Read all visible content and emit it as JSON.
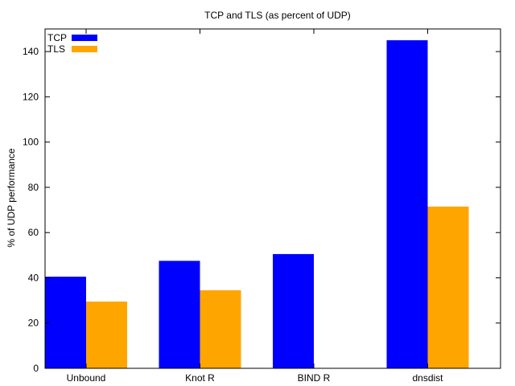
{
  "chart_data": {
    "type": "bar",
    "title": "TCP and TLS (as percent of UDP)",
    "xlabel": "",
    "ylabel": "% of UDP performance",
    "categories": [
      "Unbound",
      "Knot R",
      "BIND R",
      "dnsdist"
    ],
    "series": [
      {
        "name": "TCP",
        "color": "#0000ff",
        "values": [
          40.5,
          47.5,
          50.5,
          145
        ]
      },
      {
        "name": "TLS",
        "color": "#ffa500",
        "values": [
          29.5,
          34.5,
          null,
          71.5
        ]
      }
    ],
    "ylim": [
      0,
      150
    ],
    "yticks": [
      0,
      20,
      40,
      60,
      80,
      100,
      120,
      140
    ],
    "grid": false,
    "legend_position": "top-left"
  }
}
